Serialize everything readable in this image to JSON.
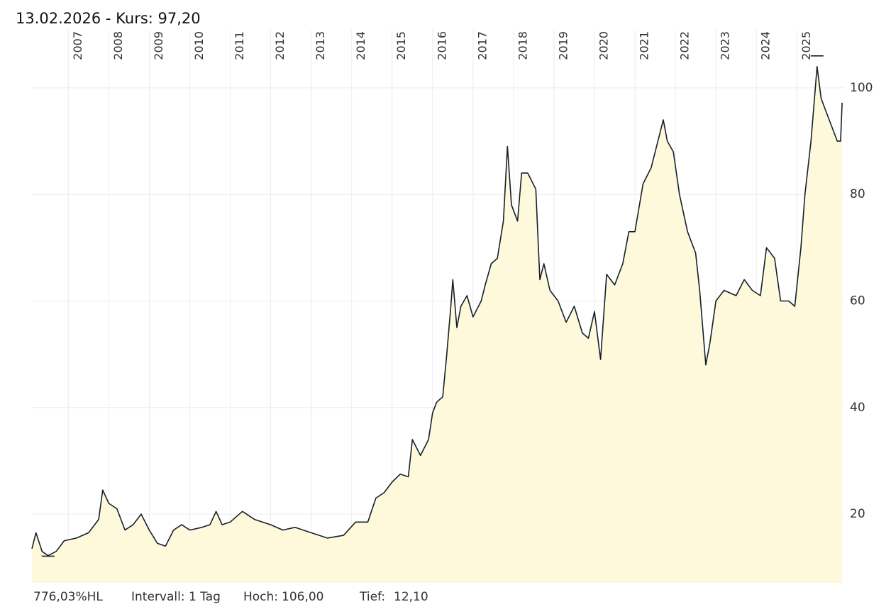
{
  "chart_data": {
    "type": "area",
    "title": "13.02.2026  - Kurs: 97,20",
    "footer": {
      "performance": "776,03%HL",
      "interval": "Intervall: 1 Tag"
    },
    "high": {
      "label": "Hoch:",
      "value": 106,
      "value_label": "106,00",
      "x": 2025.5
    },
    "low": {
      "label": "Tief:",
      "value": 12.1,
      "value_label": "12,10",
      "x": 2006.5
    },
    "xlim": [
      2006.1,
      2026.17
    ],
    "xticks": [
      2007,
      2008,
      2009,
      2010,
      2011,
      2012,
      2013,
      2014,
      2015,
      2016,
      2017,
      2018,
      2019,
      2020,
      2021,
      2022,
      2023,
      2024,
      2025
    ],
    "ylim": [
      7.1,
      110.9
    ],
    "yticks": [
      20,
      40,
      60,
      80,
      100
    ],
    "grid": true,
    "series": [
      {
        "color": "#14202b",
        "fill": "#fff9dc",
        "x": [
          2006.1,
          2006.2,
          2006.35,
          2006.5,
          2006.7,
          2006.9,
          2007.2,
          2007.5,
          2007.75,
          2007.85,
          2008.0,
          2008.2,
          2008.4,
          2008.6,
          2008.8,
          2009.0,
          2009.2,
          2009.4,
          2009.6,
          2009.8,
          2010.0,
          2010.3,
          2010.5,
          2010.65,
          2010.8,
          2011.0,
          2011.3,
          2011.6,
          2012.0,
          2012.3,
          2012.6,
          2013.0,
          2013.4,
          2013.8,
          2014.1,
          2014.4,
          2014.6,
          2014.8,
          2015.0,
          2015.2,
          2015.4,
          2015.5,
          2015.7,
          2015.9,
          2016.0,
          2016.1,
          2016.25,
          2016.35,
          2016.45,
          2016.5,
          2016.6,
          2016.7,
          2016.85,
          2017.0,
          2017.2,
          2017.3,
          2017.45,
          2017.6,
          2017.75,
          2017.85,
          2017.95,
          2018.1,
          2018.2,
          2018.35,
          2018.55,
          2018.65,
          2018.75,
          2018.9,
          2019.1,
          2019.3,
          2019.5,
          2019.7,
          2019.85,
          2020.0,
          2020.15,
          2020.3,
          2020.5,
          2020.7,
          2020.85,
          2021.0,
          2021.2,
          2021.4,
          2021.5,
          2021.7,
          2021.8,
          2021.95,
          2022.1,
          2022.3,
          2022.5,
          2022.6,
          2022.75,
          2022.85,
          2023.0,
          2023.2,
          2023.5,
          2023.7,
          2023.9,
          2024.1,
          2024.25,
          2024.45,
          2024.6,
          2024.8,
          2024.95,
          2025.1,
          2025.2,
          2025.35,
          2025.5,
          2025.6,
          2025.8,
          2026.0,
          2026.08,
          2026.12
        ],
        "values": [
          13.5,
          16.5,
          13,
          12.2,
          13,
          15,
          15.5,
          16.5,
          19,
          24.5,
          22,
          21,
          17,
          18,
          20,
          17,
          14.5,
          14,
          17,
          18,
          17,
          17.5,
          18,
          20.5,
          18,
          18.5,
          20.5,
          19,
          18,
          17,
          17.5,
          16.5,
          15.5,
          16,
          18.5,
          18.5,
          23,
          24,
          26,
          27.5,
          27,
          34,
          31,
          34,
          39,
          41,
          42,
          50,
          59,
          64,
          55,
          59,
          61,
          57,
          60,
          63,
          67,
          68,
          75,
          89,
          78,
          75,
          84,
          84,
          81,
          64,
          67,
          62,
          60,
          56,
          59,
          54,
          53,
          58,
          49,
          65,
          63,
          67,
          73,
          73,
          82,
          85,
          88,
          94,
          90,
          88,
          80,
          73,
          69,
          62,
          48,
          52,
          60,
          62,
          61,
          64,
          62,
          61,
          70,
          68,
          60,
          60,
          59,
          70,
          80,
          90,
          104,
          98,
          94,
          90,
          90,
          97.2
        ]
      }
    ]
  }
}
